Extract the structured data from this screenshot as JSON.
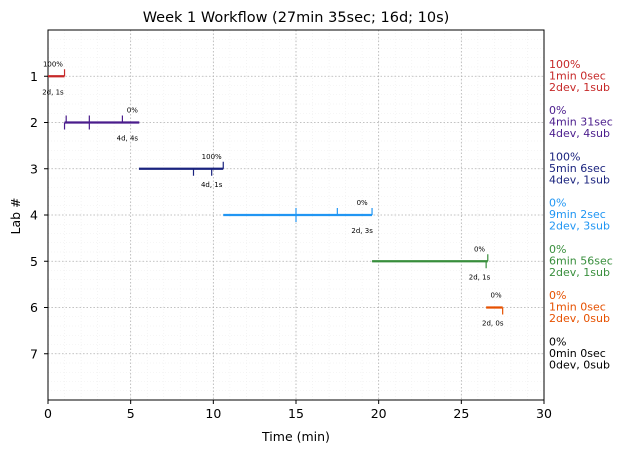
{
  "chart_data": {
    "type": "timeline",
    "title": "Week 1 Workflow (27min 35sec; 16d; 10s)",
    "xlabel": "Time (min)",
    "ylabel": "Lab #",
    "xlim": [
      0,
      30
    ],
    "ylim": [
      8,
      0
    ],
    "x_ticks": [
      0,
      5,
      10,
      15,
      20,
      25,
      30
    ],
    "x_tick_labels": [
      "0",
      "5",
      "10",
      "15",
      "20",
      "25",
      "30"
    ],
    "y_ticks": [
      1,
      2,
      3,
      4,
      5,
      6,
      7
    ],
    "y_tick_labels": [
      "1",
      "2",
      "3",
      "4",
      "5",
      "6",
      "7"
    ],
    "grid": true,
    "series": [
      {
        "lab": 1,
        "color": "#c62828",
        "start": 0.0,
        "end": 1.0,
        "events_up": [
          1.0
        ],
        "events_down": [],
        "pct_label": "100%",
        "pct_x": 0.3,
        "count_label": "2d, 1s",
        "count_x": 0.3,
        "side_lines": [
          "100%",
          "1min 0sec",
          "2dev, 1sub"
        ]
      },
      {
        "lab": 2,
        "color": "#4a1c8c",
        "start": 1.0,
        "end": 5.52,
        "events_up": [
          1.1,
          2.5,
          4.5
        ],
        "events_down": [
          1.0,
          2.5
        ],
        "pct_label": "0%",
        "pct_x": 5.1,
        "count_label": "4d, 4s",
        "count_x": 4.8,
        "side_lines": [
          "0%",
          "4min 31sec",
          "4dev, 4sub"
        ]
      },
      {
        "lab": 3,
        "color": "#1a237e",
        "start": 5.5,
        "end": 10.6,
        "events_up": [
          10.6
        ],
        "events_down": [
          8.8,
          9.9
        ],
        "pct_label": "100%",
        "pct_x": 9.9,
        "count_label": "4d, 1s",
        "count_x": 9.9,
        "side_lines": [
          "100%",
          "5min 6sec",
          "4dev, 1sub"
        ]
      },
      {
        "lab": 4,
        "color": "#2196f3",
        "start": 10.6,
        "end": 19.6,
        "events_up": [
          15.0,
          17.5,
          19.6
        ],
        "events_down": [
          15.0
        ],
        "pct_label": "0%",
        "pct_x": 19.0,
        "count_label": "2d, 3s",
        "count_x": 19.0,
        "side_lines": [
          "0%",
          "9min 2sec",
          "2dev, 3sub"
        ]
      },
      {
        "lab": 5,
        "color": "#388e3c",
        "start": 19.6,
        "end": 26.6,
        "events_up": [
          26.6
        ],
        "events_down": [
          26.5
        ],
        "pct_label": "0%",
        "pct_x": 26.1,
        "count_label": "2d, 1s",
        "count_x": 26.1,
        "side_lines": [
          "0%",
          "6min 56sec",
          "2dev, 1sub"
        ]
      },
      {
        "lab": 6,
        "color": "#e65100",
        "start": 26.5,
        "end": 27.5,
        "events_up": [],
        "events_down": [
          27.5
        ],
        "pct_label": "0%",
        "pct_x": 27.1,
        "count_label": "2d, 0s",
        "count_x": 26.9,
        "side_lines": [
          "0%",
          "1min 0sec",
          "2dev, 0sub"
        ]
      },
      {
        "lab": 7,
        "color": "#000000",
        "start": null,
        "end": null,
        "events_up": [],
        "events_down": [],
        "pct_label": "",
        "pct_x": null,
        "count_label": "",
        "count_x": null,
        "side_lines": [
          "0%",
          "0min 0sec",
          "0dev, 0sub"
        ]
      }
    ]
  }
}
